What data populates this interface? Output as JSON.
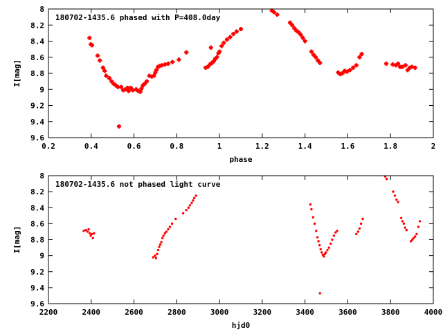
{
  "colors": {
    "series": "#ff0000",
    "frame": "#000000",
    "background": "#ffffff"
  },
  "chart_data": [
    {
      "type": "scatter",
      "title": "180702-1435.6 phased with P=408.0day",
      "xlabel": "phase",
      "ylabel": "I[mag]",
      "xlim": [
        0.2,
        2.0
      ],
      "ylim": [
        8.0,
        9.6
      ],
      "y_inverted": true,
      "grid": false,
      "legend": "none",
      "marker": "plus",
      "xticks": [
        0.2,
        0.4,
        0.6,
        0.8,
        1,
        1.2,
        1.4,
        1.6,
        1.8,
        2
      ],
      "xtick_labels": [
        "0.2",
        "0.4",
        "0.6",
        "0.8",
        "1",
        "1.2",
        "1.4",
        "1.6",
        "1.8",
        "2"
      ],
      "yticks": [
        8,
        8.2,
        8.4,
        8.6,
        8.8,
        9,
        9.2,
        9.4,
        9.6
      ],
      "ytick_labels": [
        "8",
        "8.2",
        "8.4",
        "8.6",
        "8.8",
        "9",
        "9.2",
        "9.4",
        "9.6"
      ],
      "series": [
        {
          "points": [
            [
              0.392,
              8.36
            ],
            [
              0.398,
              8.44
            ],
            [
              0.404,
              8.45
            ],
            [
              0.43,
              8.58
            ],
            [
              0.44,
              8.64
            ],
            [
              0.455,
              8.73
            ],
            [
              0.463,
              8.77
            ],
            [
              0.47,
              8.83
            ],
            [
              0.485,
              8.86
            ],
            [
              0.495,
              8.9
            ],
            [
              0.505,
              8.93
            ],
            [
              0.515,
              8.95
            ],
            [
              0.525,
              8.97
            ],
            [
              0.53,
              9.46
            ],
            [
              0.54,
              8.97
            ],
            [
              0.55,
              9.01
            ],
            [
              0.56,
              9.0
            ],
            [
              0.57,
              8.98
            ],
            [
              0.575,
              9.02
            ],
            [
              0.585,
              8.98
            ],
            [
              0.595,
              9.01
            ],
            [
              0.61,
              9.0
            ],
            [
              0.62,
              9.02
            ],
            [
              0.63,
              9.03
            ],
            [
              0.635,
              8.99
            ],
            [
              0.642,
              8.95
            ],
            [
              0.65,
              8.93
            ],
            [
              0.66,
              8.9
            ],
            [
              0.672,
              8.83
            ],
            [
              0.683,
              8.84
            ],
            [
              0.693,
              8.83
            ],
            [
              0.7,
              8.79
            ],
            [
              0.705,
              8.76
            ],
            [
              0.712,
              8.72
            ],
            [
              0.72,
              8.71
            ],
            [
              0.73,
              8.7
            ],
            [
              0.745,
              8.69
            ],
            [
              0.76,
              8.68
            ],
            [
              0.78,
              8.66
            ],
            [
              0.81,
              8.63
            ],
            [
              0.845,
              8.54
            ],
            [
              0.935,
              8.73
            ],
            [
              0.945,
              8.72
            ],
            [
              0.955,
              8.69
            ],
            [
              0.96,
              8.48
            ],
            [
              0.965,
              8.67
            ],
            [
              0.973,
              8.65
            ],
            [
              0.98,
              8.62
            ],
            [
              0.988,
              8.6
            ],
            [
              0.995,
              8.55
            ],
            [
              1.0,
              8.53
            ],
            [
              1.01,
              8.46
            ],
            [
              1.02,
              8.42
            ],
            [
              1.035,
              8.38
            ],
            [
              1.05,
              8.35
            ],
            [
              1.065,
              8.31
            ],
            [
              1.08,
              8.28
            ],
            [
              1.1,
              8.25
            ],
            [
              1.245,
              8.02
            ],
            [
              1.255,
              8.04
            ],
            [
              1.27,
              8.07
            ],
            [
              1.33,
              8.17
            ],
            [
              1.34,
              8.2
            ],
            [
              1.35,
              8.24
            ],
            [
              1.36,
              8.27
            ],
            [
              1.37,
              8.29
            ],
            [
              1.38,
              8.32
            ],
            [
              1.39,
              8.36
            ],
            [
              1.4,
              8.4
            ],
            [
              1.43,
              8.53
            ],
            [
              1.44,
              8.57
            ],
            [
              1.45,
              8.6
            ],
            [
              1.46,
              8.64
            ],
            [
              1.47,
              8.67
            ],
            [
              1.555,
              8.79
            ],
            [
              1.565,
              8.81
            ],
            [
              1.575,
              8.8
            ],
            [
              1.585,
              8.77
            ],
            [
              1.595,
              8.78
            ],
            [
              1.61,
              8.76
            ],
            [
              1.625,
              8.73
            ],
            [
              1.64,
              8.7
            ],
            [
              1.655,
              8.6
            ],
            [
              1.665,
              8.56
            ],
            [
              1.78,
              8.68
            ],
            [
              1.81,
              8.69
            ],
            [
              1.825,
              8.7
            ],
            [
              1.835,
              8.68
            ],
            [
              1.845,
              8.72
            ],
            [
              1.855,
              8.72
            ],
            [
              1.87,
              8.7
            ],
            [
              1.88,
              8.76
            ],
            [
              1.89,
              8.73
            ],
            [
              1.9,
              8.72
            ],
            [
              1.915,
              8.73
            ]
          ]
        }
      ]
    },
    {
      "type": "scatter",
      "title": "180702-1435.6 not phased light curve",
      "xlabel": "hjd0",
      "ylabel": "I[mag]",
      "xlim": [
        2200,
        4000
      ],
      "ylim": [
        8.0,
        9.6
      ],
      "y_inverted": true,
      "grid": false,
      "legend": "none",
      "marker": "dot",
      "xticks": [
        2200,
        2400,
        2600,
        2800,
        3000,
        3200,
        3400,
        3600,
        3800,
        4000
      ],
      "xtick_labels": [
        "2200",
        "2400",
        "2600",
        "2800",
        "3000",
        "3200",
        "3400",
        "3600",
        "3800",
        "4000"
      ],
      "yticks": [
        8,
        8.2,
        8.4,
        8.6,
        8.8,
        9,
        9.2,
        9.4,
        9.6
      ],
      "ytick_labels": [
        "8",
        "8.2",
        "8.4",
        "8.6",
        "8.8",
        "9",
        "9.2",
        "9.4",
        "9.6"
      ],
      "series": [
        {
          "points": [
            [
              2365,
              8.69
            ],
            [
              2375,
              8.68
            ],
            [
              2383,
              8.7
            ],
            [
              2388,
              8.67
            ],
            [
              2393,
              8.72
            ],
            [
              2398,
              8.75
            ],
            [
              2403,
              8.73
            ],
            [
              2408,
              8.78
            ],
            [
              2413,
              8.72
            ],
            [
              2690,
              9.02
            ],
            [
              2698,
              9.0
            ],
            [
              2703,
              9.03
            ],
            [
              2708,
              8.98
            ],
            [
              2713,
              8.93
            ],
            [
              2718,
              8.89
            ],
            [
              2723,
              8.86
            ],
            [
              2728,
              8.83
            ],
            [
              2733,
              8.78
            ],
            [
              2738,
              8.75
            ],
            [
              2745,
              8.72
            ],
            [
              2752,
              8.7
            ],
            [
              2760,
              8.67
            ],
            [
              2768,
              8.64
            ],
            [
              2778,
              8.6
            ],
            [
              2795,
              8.54
            ],
            [
              2830,
              8.47
            ],
            [
              2845,
              8.43
            ],
            [
              2855,
              8.4
            ],
            [
              2862,
              8.37
            ],
            [
              2870,
              8.34
            ],
            [
              2876,
              8.31
            ],
            [
              2882,
              8.28
            ],
            [
              2890,
              8.25
            ],
            [
              3425,
              8.36
            ],
            [
              3430,
              8.42
            ],
            [
              3438,
              8.52
            ],
            [
              3445,
              8.6
            ],
            [
              3452,
              8.69
            ],
            [
              3458,
              8.77
            ],
            [
              3463,
              8.82
            ],
            [
              3468,
              8.87
            ],
            [
              3470,
              9.47
            ],
            [
              3473,
              8.92
            ],
            [
              3478,
              8.96
            ],
            [
              3483,
              8.99
            ],
            [
              3488,
              9.01
            ],
            [
              3493,
              8.98
            ],
            [
              3498,
              8.96
            ],
            [
              3505,
              8.93
            ],
            [
              3512,
              8.9
            ],
            [
              3520,
              8.85
            ],
            [
              3527,
              8.8
            ],
            [
              3535,
              8.75
            ],
            [
              3543,
              8.71
            ],
            [
              3550,
              8.69
            ],
            [
              3640,
              8.73
            ],
            [
              3648,
              8.7
            ],
            [
              3655,
              8.66
            ],
            [
              3662,
              8.6
            ],
            [
              3670,
              8.54
            ],
            [
              3775,
              8.01
            ],
            [
              3782,
              8.04
            ],
            [
              3812,
              8.2
            ],
            [
              3820,
              8.25
            ],
            [
              3828,
              8.3
            ],
            [
              3835,
              8.33
            ],
            [
              3850,
              8.53
            ],
            [
              3856,
              8.57
            ],
            [
              3862,
              8.6
            ],
            [
              3868,
              8.65
            ],
            [
              3875,
              8.68
            ],
            [
              3895,
              8.82
            ],
            [
              3902,
              8.8
            ],
            [
              3908,
              8.78
            ],
            [
              3915,
              8.76
            ],
            [
              3922,
              8.73
            ],
            [
              3930,
              8.64
            ],
            [
              3937,
              8.57
            ]
          ]
        }
      ]
    }
  ]
}
